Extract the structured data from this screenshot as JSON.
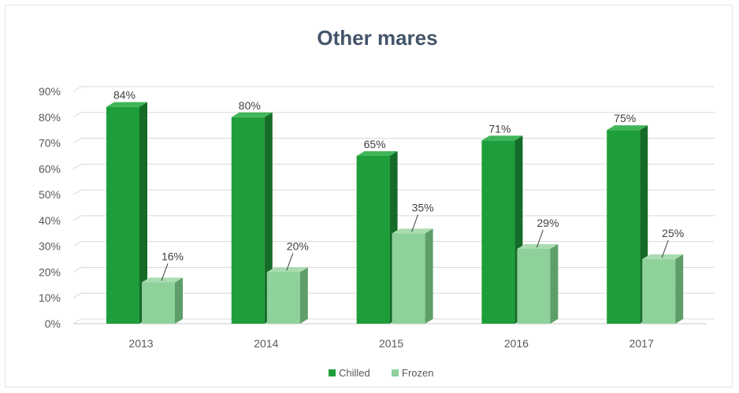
{
  "colors": {
    "chilled_front": "#1e9e3a",
    "chilled_side": "#156b28",
    "chilled_top": "#3fb65a",
    "frozen_front": "#8fd19a",
    "frozen_side": "#5f9e69",
    "frozen_top": "#a9dcb1",
    "grid": "#d9d9d9"
  },
  "chart_data": {
    "type": "bar",
    "title": "Other mares",
    "categories": [
      "2013",
      "2014",
      "2015",
      "2016",
      "2017"
    ],
    "series": [
      {
        "name": "Chilled",
        "values": [
          84,
          80,
          65,
          71,
          75
        ],
        "labels": [
          "84%",
          "80%",
          "65%",
          "71%",
          "75%"
        ]
      },
      {
        "name": "Frozen",
        "values": [
          16,
          20,
          35,
          29,
          25
        ],
        "labels": [
          "16%",
          "20%",
          "35%",
          "29%",
          "25%"
        ]
      }
    ],
    "ylim": [
      0,
      90
    ],
    "yticks": [
      "0%",
      "10%",
      "20%",
      "30%",
      "40%",
      "50%",
      "60%",
      "70%",
      "80%",
      "90%"
    ],
    "grid": true,
    "legend": "bottom",
    "three_d": true
  }
}
